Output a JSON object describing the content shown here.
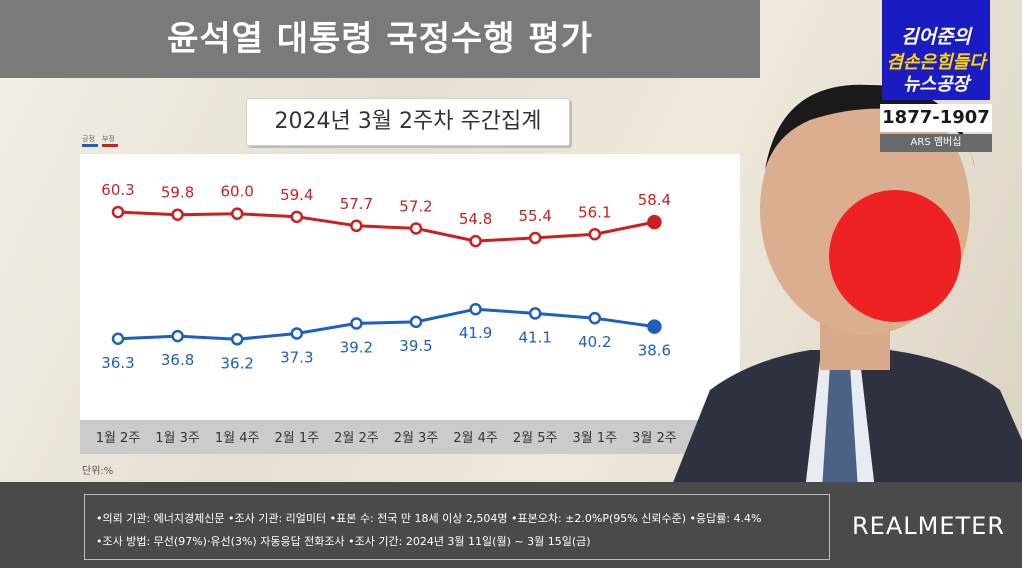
{
  "header": {
    "title": "윤석열 대통령 국정수행 평가",
    "subtitle": "2024년 3월 2주차 주간집계"
  },
  "legend": {
    "approve_label": "긍정",
    "disapprove_label": "부정"
  },
  "unit_label": "단위:%",
  "branding": {
    "show_line1": "김어준의",
    "show_line2": "겸손은힘들다",
    "show_line3": "뉴스공장",
    "phone": "1877-1907",
    "ars_label": "ARS 멤버십",
    "pollster_logo": "REALMETER"
  },
  "footer": {
    "line1": "•의뢰 기관: 에너지경제신문 •조사 기관: 리얼미터 •표본 수: 전국 만 18세 이상 2,504명 •표본오차: ±2.0%P(95% 신뢰수준) •응답률: 4.4%",
    "line2": "•조사 방법: 무선(97%)·유선(3%) 자동응답 전화조사 •조사 기간: 2024년 3월 11일(월) ~ 3월 15일(금)"
  },
  "colors": {
    "approve": "#1f5fbf",
    "disapprove": "#cc1f1f",
    "x_band": "#cbcbcb",
    "footer": "#4a4a4a"
  },
  "chart_data": {
    "type": "line",
    "title": "윤석열 대통령 국정수행 평가",
    "subtitle": "2024년 3월 2주차 주간집계",
    "categories": [
      "1월 2주",
      "1월 3주",
      "1월 4주",
      "2월 1주",
      "2월 2주",
      "2월 3주",
      "2월 4주",
      "2월 5주",
      "3월 1주",
      "3월 2주"
    ],
    "series": [
      {
        "name": "부정",
        "color": "#cc1f1f",
        "values": [
          60.3,
          59.8,
          60.0,
          59.4,
          57.7,
          57.2,
          54.8,
          55.4,
          56.1,
          58.4
        ],
        "label_position": "above"
      },
      {
        "name": "긍정",
        "color": "#1f5fbf",
        "values": [
          36.3,
          36.8,
          36.2,
          37.3,
          39.2,
          39.5,
          41.9,
          41.1,
          40.2,
          38.6
        ],
        "label_position": "below"
      }
    ],
    "ylabel": "단위:%",
    "ylim": [
      30,
      66
    ],
    "grid": false,
    "legend_position": "top-left"
  }
}
